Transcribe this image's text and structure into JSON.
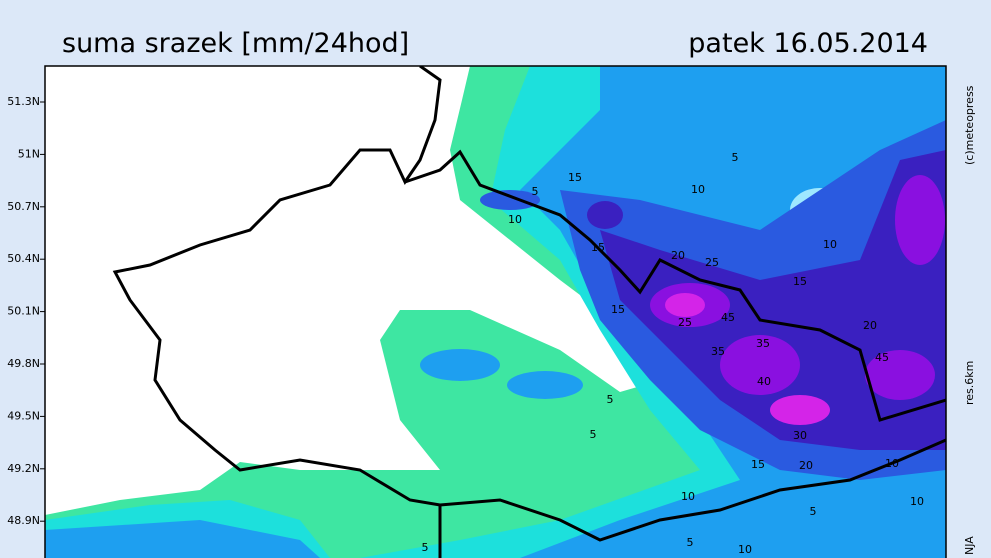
{
  "header": {
    "title": "suma srazek [mm/24hod]",
    "date": "patek 16.05.2014"
  },
  "lat_labels": [
    "51.3N",
    "51N",
    "50.7N",
    "50.4N",
    "50.1N",
    "49.8N",
    "49.5N",
    "49.2N",
    "48.9N"
  ],
  "side_labels": {
    "copyright": "(c)meteopress",
    "resolution": "res.6km",
    "author": "NJA"
  },
  "contour_labels": [
    "5",
    "5",
    "10",
    "15",
    "10",
    "10",
    "15",
    "5",
    "20",
    "25",
    "15",
    "15",
    "20",
    "25",
    "45",
    "35",
    "35",
    "40",
    "45",
    "5",
    "5",
    "30",
    "15",
    "20",
    "10",
    "10",
    "10",
    "5",
    "5",
    "10"
  ]
}
